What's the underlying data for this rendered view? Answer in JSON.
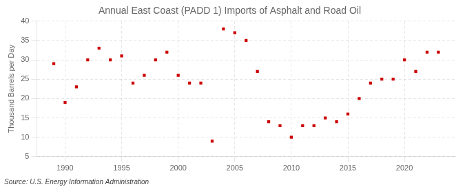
{
  "chart_data": {
    "type": "scatter",
    "title": "Annual East Coast (PADD 1) Imports of Asphalt and Road Oil",
    "ylabel": "Thousand Barrels per Day",
    "annotations": [
      "Source: U.S. Energy Information Administration"
    ],
    "x": [
      1989,
      1990,
      1991,
      1992,
      1993,
      1994,
      1995,
      1996,
      1997,
      1998,
      1999,
      2000,
      2001,
      2002,
      2003,
      2004,
      2005,
      2006,
      2007,
      2008,
      2009,
      2010,
      2011,
      2012,
      2013,
      2014,
      2015,
      2016,
      2017,
      2018,
      2019,
      2020,
      2021,
      2022,
      2023
    ],
    "values": [
      29,
      19,
      23,
      30,
      33,
      30,
      31,
      24,
      26,
      30,
      32,
      26,
      24,
      24,
      9,
      38,
      37,
      35,
      27,
      14,
      13,
      10,
      13,
      13,
      15,
      14,
      16,
      20,
      24,
      25,
      25,
      30,
      27,
      32,
      32
    ],
    "color": "#cc0000",
    "marker": "square",
    "xlim": [
      1987.5,
      2024.5
    ],
    "ylim": [
      5,
      40
    ],
    "xticks": [
      1990,
      1995,
      2000,
      2005,
      2010,
      2015,
      2020
    ],
    "yticks": [
      5,
      10,
      15,
      20,
      25,
      30,
      35,
      40
    ],
    "grid": true
  }
}
